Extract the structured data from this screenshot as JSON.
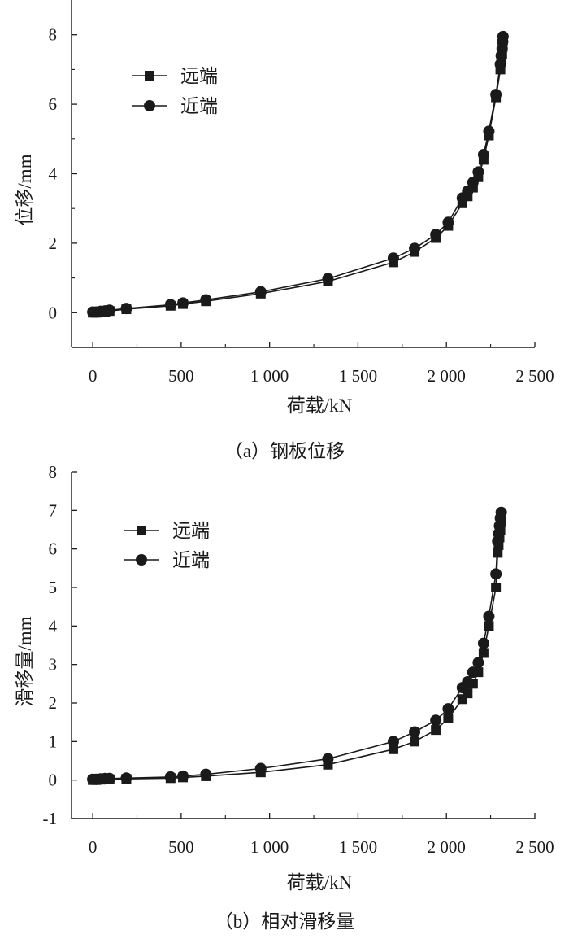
{
  "chart_data": [
    {
      "type": "line",
      "caption": "（a）钢板位移",
      "xlabel": "荷载/kN",
      "ylabel": "位移/mm",
      "xlim": [
        -120,
        2500
      ],
      "ylim": [
        -1,
        9
      ],
      "xticks": [
        0,
        500,
        1000,
        1500,
        2000,
        2500
      ],
      "xtick_labels": [
        "0",
        "500",
        "1 000",
        "1 500",
        "2 000",
        "2 500"
      ],
      "yticks": [
        0,
        2,
        4,
        6,
        8
      ],
      "ytick_labels": [
        "0",
        "2",
        "4",
        "6",
        "8"
      ],
      "legend_position": "top-left",
      "grid": false,
      "series": [
        {
          "name": "远端",
          "marker": "square",
          "x": [
            0,
            20,
            45,
            70,
            95,
            190,
            440,
            510,
            640,
            950,
            1330,
            1700,
            1820,
            1940,
            2010,
            2090,
            2120,
            2150,
            2180,
            2210,
            2240,
            2280,
            2305,
            2310,
            2315,
            2318,
            2320
          ],
          "y": [
            0.0,
            0.0,
            0.02,
            0.03,
            0.05,
            0.1,
            0.2,
            0.25,
            0.33,
            0.55,
            0.9,
            1.45,
            1.75,
            2.15,
            2.5,
            3.15,
            3.35,
            3.6,
            3.9,
            4.4,
            5.1,
            6.2,
            7.0,
            7.25,
            7.45,
            7.65,
            7.85
          ]
        },
        {
          "name": "近端",
          "marker": "circle",
          "x": [
            0,
            20,
            45,
            70,
            95,
            190,
            440,
            510,
            640,
            950,
            1330,
            1700,
            1820,
            1940,
            2010,
            2090,
            2120,
            2150,
            2180,
            2210,
            2240,
            2280,
            2305,
            2310,
            2315,
            2318,
            2320
          ],
          "y": [
            0.02,
            0.02,
            0.04,
            0.05,
            0.07,
            0.12,
            0.23,
            0.28,
            0.37,
            0.6,
            0.98,
            1.57,
            1.85,
            2.25,
            2.6,
            3.3,
            3.5,
            3.75,
            4.05,
            4.55,
            5.22,
            6.28,
            7.15,
            7.4,
            7.6,
            7.8,
            7.95
          ]
        }
      ]
    },
    {
      "type": "line",
      "caption": "（b）相对滑移量",
      "xlabel": "荷载/kN",
      "ylabel": "滑移量/mm",
      "xlim": [
        -120,
        2500
      ],
      "ylim": [
        -1,
        8
      ],
      "xticks": [
        0,
        500,
        1000,
        1500,
        2000,
        2500
      ],
      "xtick_labels": [
        "0",
        "500",
        "1 000",
        "1 500",
        "2 000",
        "2 500"
      ],
      "yticks": [
        -1,
        0,
        1,
        2,
        3,
        4,
        5,
        6,
        7,
        8
      ],
      "ytick_labels": [
        "-1",
        "0",
        "1",
        "2",
        "3",
        "4",
        "5",
        "6",
        "7",
        "8"
      ],
      "legend_position": "top-left",
      "grid": false,
      "series": [
        {
          "name": "远端",
          "marker": "square",
          "x": [
            0,
            20,
            45,
            70,
            95,
            190,
            440,
            510,
            640,
            950,
            1330,
            1700,
            1820,
            1940,
            2010,
            2090,
            2120,
            2150,
            2180,
            2210,
            2240,
            2280,
            2290,
            2295,
            2300,
            2305,
            2310
          ],
          "y": [
            0.0,
            0.0,
            0.01,
            0.02,
            0.02,
            0.03,
            0.05,
            0.07,
            0.1,
            0.2,
            0.4,
            0.8,
            1.0,
            1.3,
            1.6,
            2.1,
            2.25,
            2.5,
            2.8,
            3.3,
            4.0,
            5.0,
            5.9,
            6.1,
            6.3,
            6.5,
            6.7
          ]
        },
        {
          "name": "近端",
          "marker": "circle",
          "x": [
            0,
            20,
            45,
            70,
            95,
            190,
            440,
            510,
            640,
            950,
            1330,
            1700,
            1820,
            1940,
            2010,
            2090,
            2120,
            2150,
            2180,
            2210,
            2240,
            2280,
            2290,
            2295,
            2300,
            2305,
            2310
          ],
          "y": [
            0.02,
            0.02,
            0.03,
            0.04,
            0.04,
            0.05,
            0.08,
            0.1,
            0.15,
            0.3,
            0.55,
            1.0,
            1.25,
            1.55,
            1.85,
            2.4,
            2.55,
            2.8,
            3.05,
            3.55,
            4.25,
            5.35,
            6.2,
            6.4,
            6.6,
            6.8,
            6.95
          ]
        }
      ]
    }
  ]
}
